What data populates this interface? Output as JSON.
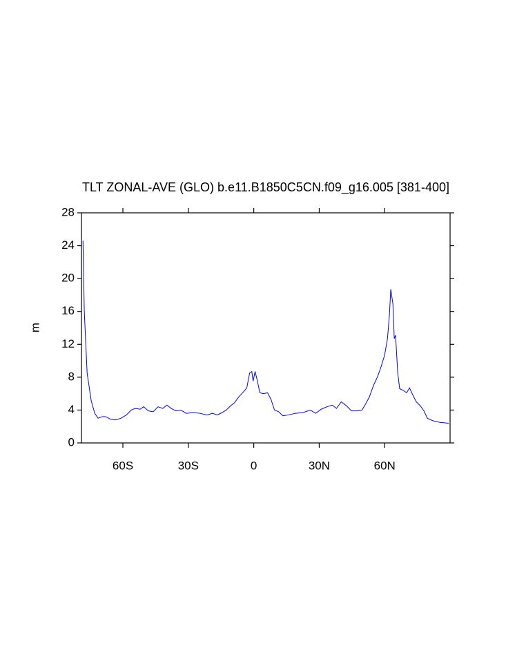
{
  "chart_data": {
    "type": "line",
    "title": "TLT ZONAL-AVE (GLO) b.e11.B1850C5CN.f09_g16.005 [381-400]",
    "ylabel": "m",
    "xlim": [
      -79,
      90
    ],
    "ylim": [
      0,
      28
    ],
    "xticks": [
      {
        "value": -60,
        "label": "60S"
      },
      {
        "value": -30,
        "label": "30S"
      },
      0,
      {
        "value": 30,
        "label": "30N"
      },
      {
        "value": 60,
        "label": "60N"
      }
    ],
    "yticks": [
      0,
      4,
      8,
      12,
      16,
      20,
      24,
      28
    ],
    "grid": false,
    "series": [
      {
        "color": "#0000ff",
        "x": [
          -78.3,
          -77.7,
          -76.4,
          -74.5,
          -72.9,
          -71.4,
          -69.5,
          -67.9,
          -65.7,
          -63.5,
          -60.9,
          -58.4,
          -56.2,
          -54.3,
          -52.1,
          -50.5,
          -48.3,
          -46.1,
          -43.9,
          -41.7,
          -39.8,
          -37.9,
          -35.7,
          -33.5,
          -30.9,
          -27.8,
          -24.6,
          -21.5,
          -18.9,
          -16.7,
          -14.5,
          -12.6,
          -10.7,
          -8.8,
          -6.9,
          -5.1,
          -3.2,
          -1.9,
          -0.9,
          -0.3,
          0.6,
          1.6,
          2.8,
          4.4,
          6.3,
          7.9,
          9.5,
          11.4,
          13.3,
          15.8,
          18.9,
          22.7,
          25.9,
          28.4,
          30.9,
          33.5,
          36.0,
          37.9,
          40.1,
          42.6,
          44.8,
          47.4,
          49.6,
          51.2,
          53.0,
          54.9,
          56.8,
          58.4,
          60.0,
          61.3,
          62.2,
          62.8,
          63.8,
          64.4,
          65.0,
          66.0,
          66.9,
          68.5,
          70.1,
          71.4,
          72.6,
          74.5,
          76.4,
          78.0,
          79.6,
          82.1,
          85.3,
          89.4
        ],
        "values": [
          24.6,
          16.0,
          8.5,
          5.1,
          3.6,
          3.0,
          3.2,
          3.2,
          2.9,
          2.8,
          3.0,
          3.4,
          4.0,
          4.2,
          4.1,
          4.4,
          3.9,
          3.8,
          4.4,
          4.2,
          4.6,
          4.2,
          3.9,
          4.0,
          3.6,
          3.7,
          3.6,
          3.4,
          3.6,
          3.4,
          3.7,
          4.0,
          4.5,
          4.9,
          5.6,
          6.1,
          6.7,
          8.5,
          8.7,
          7.5,
          8.7,
          7.6,
          6.1,
          6.0,
          6.1,
          5.3,
          4.0,
          3.8,
          3.3,
          3.4,
          3.6,
          3.7,
          4.0,
          3.6,
          4.1,
          4.4,
          4.6,
          4.2,
          5.0,
          4.5,
          3.9,
          3.9,
          4.0,
          4.7,
          5.6,
          7.0,
          8.1,
          9.3,
          10.7,
          12.7,
          15.6,
          18.7,
          16.9,
          12.7,
          13.1,
          8.5,
          6.6,
          6.4,
          6.1,
          6.7,
          6.0,
          5.0,
          4.5,
          3.9,
          3.0,
          2.7,
          2.5,
          2.4
        ]
      }
    ]
  }
}
